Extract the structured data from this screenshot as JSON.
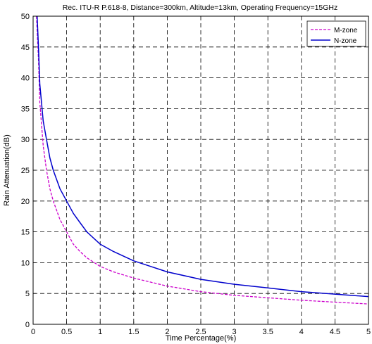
{
  "chart_data": {
    "type": "line",
    "title": "Rec. ITU-R P.618-8, Distance=300km, Altitude=13km, Operating Frequency=15GHz",
    "xlabel": "Time Percentage(%)",
    "ylabel": "Rain Attenuation(dB)",
    "xlim": [
      0,
      5
    ],
    "ylim": [
      0,
      50
    ],
    "xticks": [
      "0",
      "0.5",
      "1",
      "1.5",
      "2",
      "2.5",
      "3",
      "3.5",
      "4",
      "4.5",
      "5"
    ],
    "yticks": [
      "0",
      "5",
      "10",
      "15",
      "20",
      "25",
      "30",
      "35",
      "40",
      "45",
      "50"
    ],
    "grid": true,
    "legend_position": "top-right",
    "series": [
      {
        "name": "M-zone",
        "color": "#cc00cc",
        "style": "dashed",
        "x": [
          0.05,
          0.08,
          0.1,
          0.15,
          0.2,
          0.25,
          0.3,
          0.4,
          0.5,
          0.6,
          0.7,
          0.8,
          1.0,
          1.2,
          1.5,
          2.0,
          2.5,
          3.0,
          3.5,
          4.0,
          4.5,
          5.0
        ],
        "y": [
          50,
          43,
          36,
          29,
          25,
          22,
          20,
          17,
          15,
          13,
          11.8,
          10.8,
          9.4,
          8.5,
          7.5,
          6.2,
          5.3,
          4.7,
          4.3,
          3.9,
          3.6,
          3.3
        ]
      },
      {
        "name": "N-zone",
        "color": "#0000cc",
        "style": "solid",
        "x": [
          0.06,
          0.08,
          0.1,
          0.15,
          0.2,
          0.25,
          0.3,
          0.4,
          0.5,
          0.6,
          0.7,
          0.8,
          1.0,
          1.2,
          1.5,
          2.0,
          2.5,
          3.0,
          3.5,
          4.0,
          4.5,
          5.0
        ],
        "y": [
          50,
          45,
          39,
          33,
          30,
          27,
          25,
          22,
          20,
          18,
          16.5,
          15,
          13,
          11.8,
          10.3,
          8.5,
          7.3,
          6.5,
          5.9,
          5.3,
          4.9,
          4.5
        ]
      }
    ]
  }
}
